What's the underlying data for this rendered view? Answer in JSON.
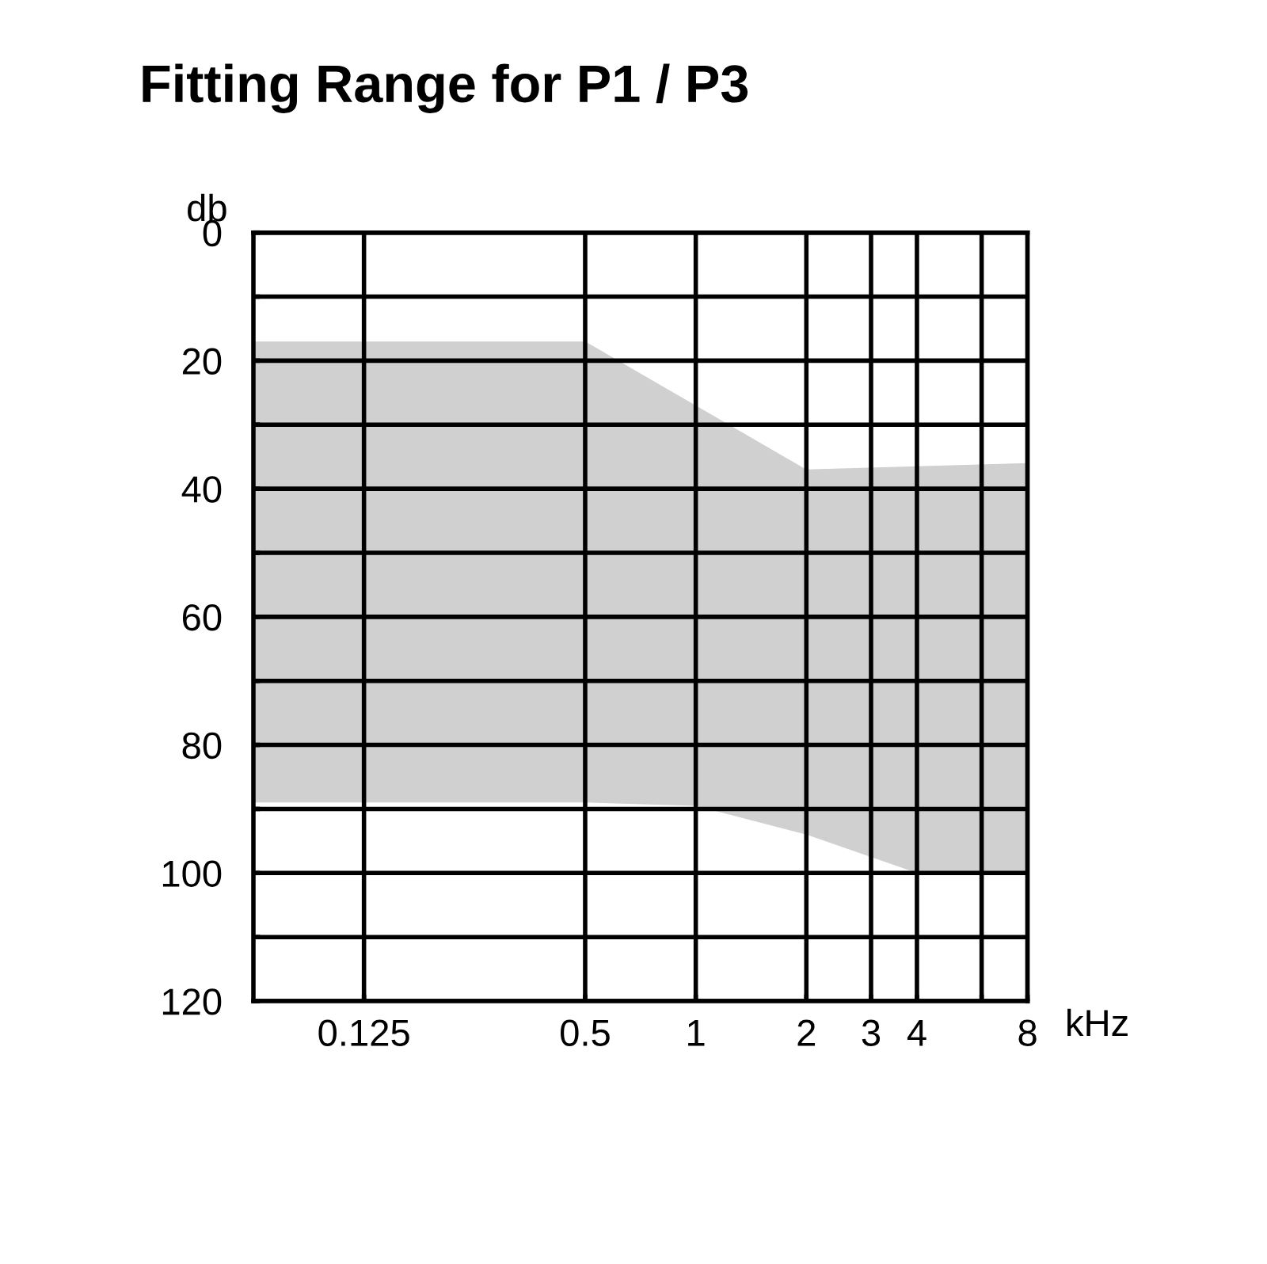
{
  "chart_data": {
    "type": "area",
    "title": "Fitting Range for P1 / P3",
    "xlabel": "kHz",
    "ylabel": "db",
    "x": [
      0.0625,
      0.5,
      1,
      2,
      4,
      8
    ],
    "series": [
      {
        "color": "#d0d0d0",
        "values": [
          null,
          null,
          null,
          null,
          null,
          null
        ],
        "lower": [
          17,
          17,
          27,
          37,
          36.5,
          36
        ],
        "upper": [
          89,
          89,
          89.5,
          94,
          100,
          100
        ]
      }
    ],
    "xlim": [
      0.0625,
      8
    ],
    "xticks": [
      {
        "value": 0.125,
        "label": "0.125"
      },
      {
        "value": 0.5,
        "label": "0.5"
      },
      1,
      2,
      3,
      4,
      {
        "value": 6,
        "label": null
      },
      8
    ],
    "ylim": [
      120,
      0
    ],
    "yticks": [
      0,
      {
        "value": 10,
        "label": null
      },
      20,
      {
        "value": 30,
        "label": null
      },
      40,
      {
        "value": 50,
        "label": null
      },
      60,
      {
        "value": 70,
        "label": null
      },
      80,
      {
        "value": 90,
        "label": null
      },
      100,
      {
        "value": 110,
        "label": null
      },
      120
    ],
    "log": "x",
    "grid": true
  }
}
